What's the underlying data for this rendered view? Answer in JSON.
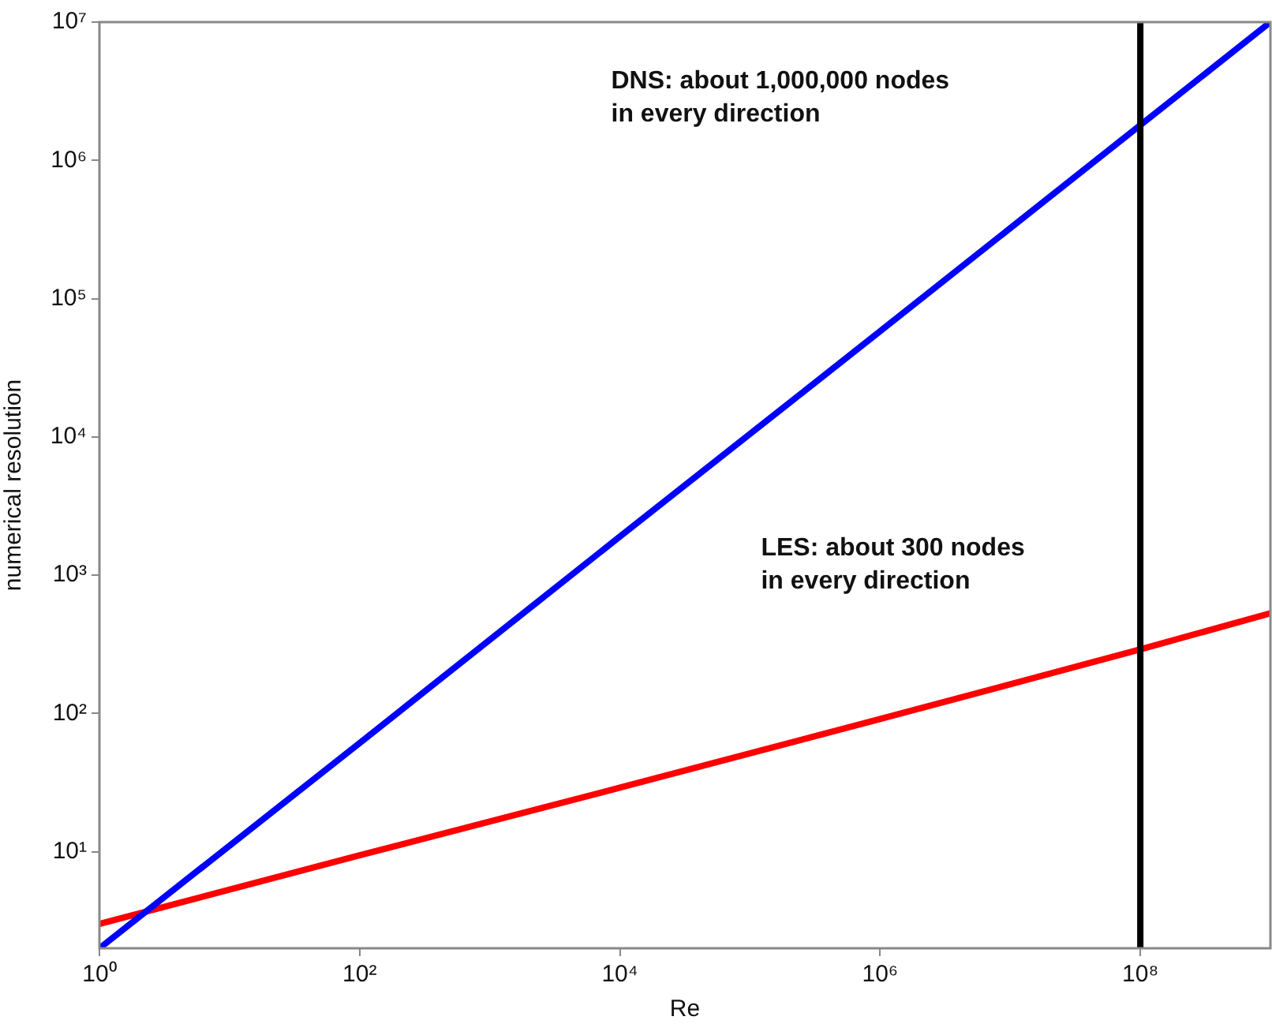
{
  "chart_data": {
    "type": "line",
    "xlabel": "Re",
    "ylabel": "numerical resolution",
    "log": "xy",
    "grid": false,
    "legend": false,
    "marker": "none",
    "line_style": "solid",
    "xlim": [
      1,
      1000000000
    ],
    "ylim": [
      2,
      10000000
    ],
    "xticks": [
      {
        "value": 1,
        "label": "10⁰"
      },
      {
        "value": 100,
        "label": "10²"
      },
      {
        "value": 10000,
        "label": "10⁴"
      },
      {
        "value": 1000000,
        "label": "10⁶"
      },
      {
        "value": 100000000,
        "label": "10⁸"
      }
    ],
    "yticks": [
      {
        "value": 10,
        "label": "10¹"
      },
      {
        "value": 100,
        "label": "10²"
      },
      {
        "value": 1000,
        "label": "10³"
      },
      {
        "value": 10000,
        "label": "10⁴"
      },
      {
        "value": 100000,
        "label": "10⁵"
      },
      {
        "value": 1000000,
        "label": "10⁶"
      },
      {
        "value": 10000000,
        "label": "10⁷"
      }
    ],
    "series": [
      {
        "color": "#0000ff",
        "x": [
          1,
          100,
          10000,
          1000000,
          100000000,
          1000000000
        ],
        "values": [
          2,
          61,
          1900,
          58000,
          1800000,
          10000000
        ]
      },
      {
        "color": "#ff0000",
        "x": [
          1,
          100,
          10000,
          1000000,
          100000000,
          1000000000
        ],
        "values": [
          3,
          9.4,
          29,
          91,
          290,
          530
        ]
      }
    ],
    "ref_lines": [
      {
        "axis": "x",
        "value": 100000000,
        "color": "#000000"
      }
    ],
    "annotations": [
      "DNS: about 1,000,000 nodes\nin every direction",
      "LES: about 300 nodes\nin every direction"
    ]
  }
}
